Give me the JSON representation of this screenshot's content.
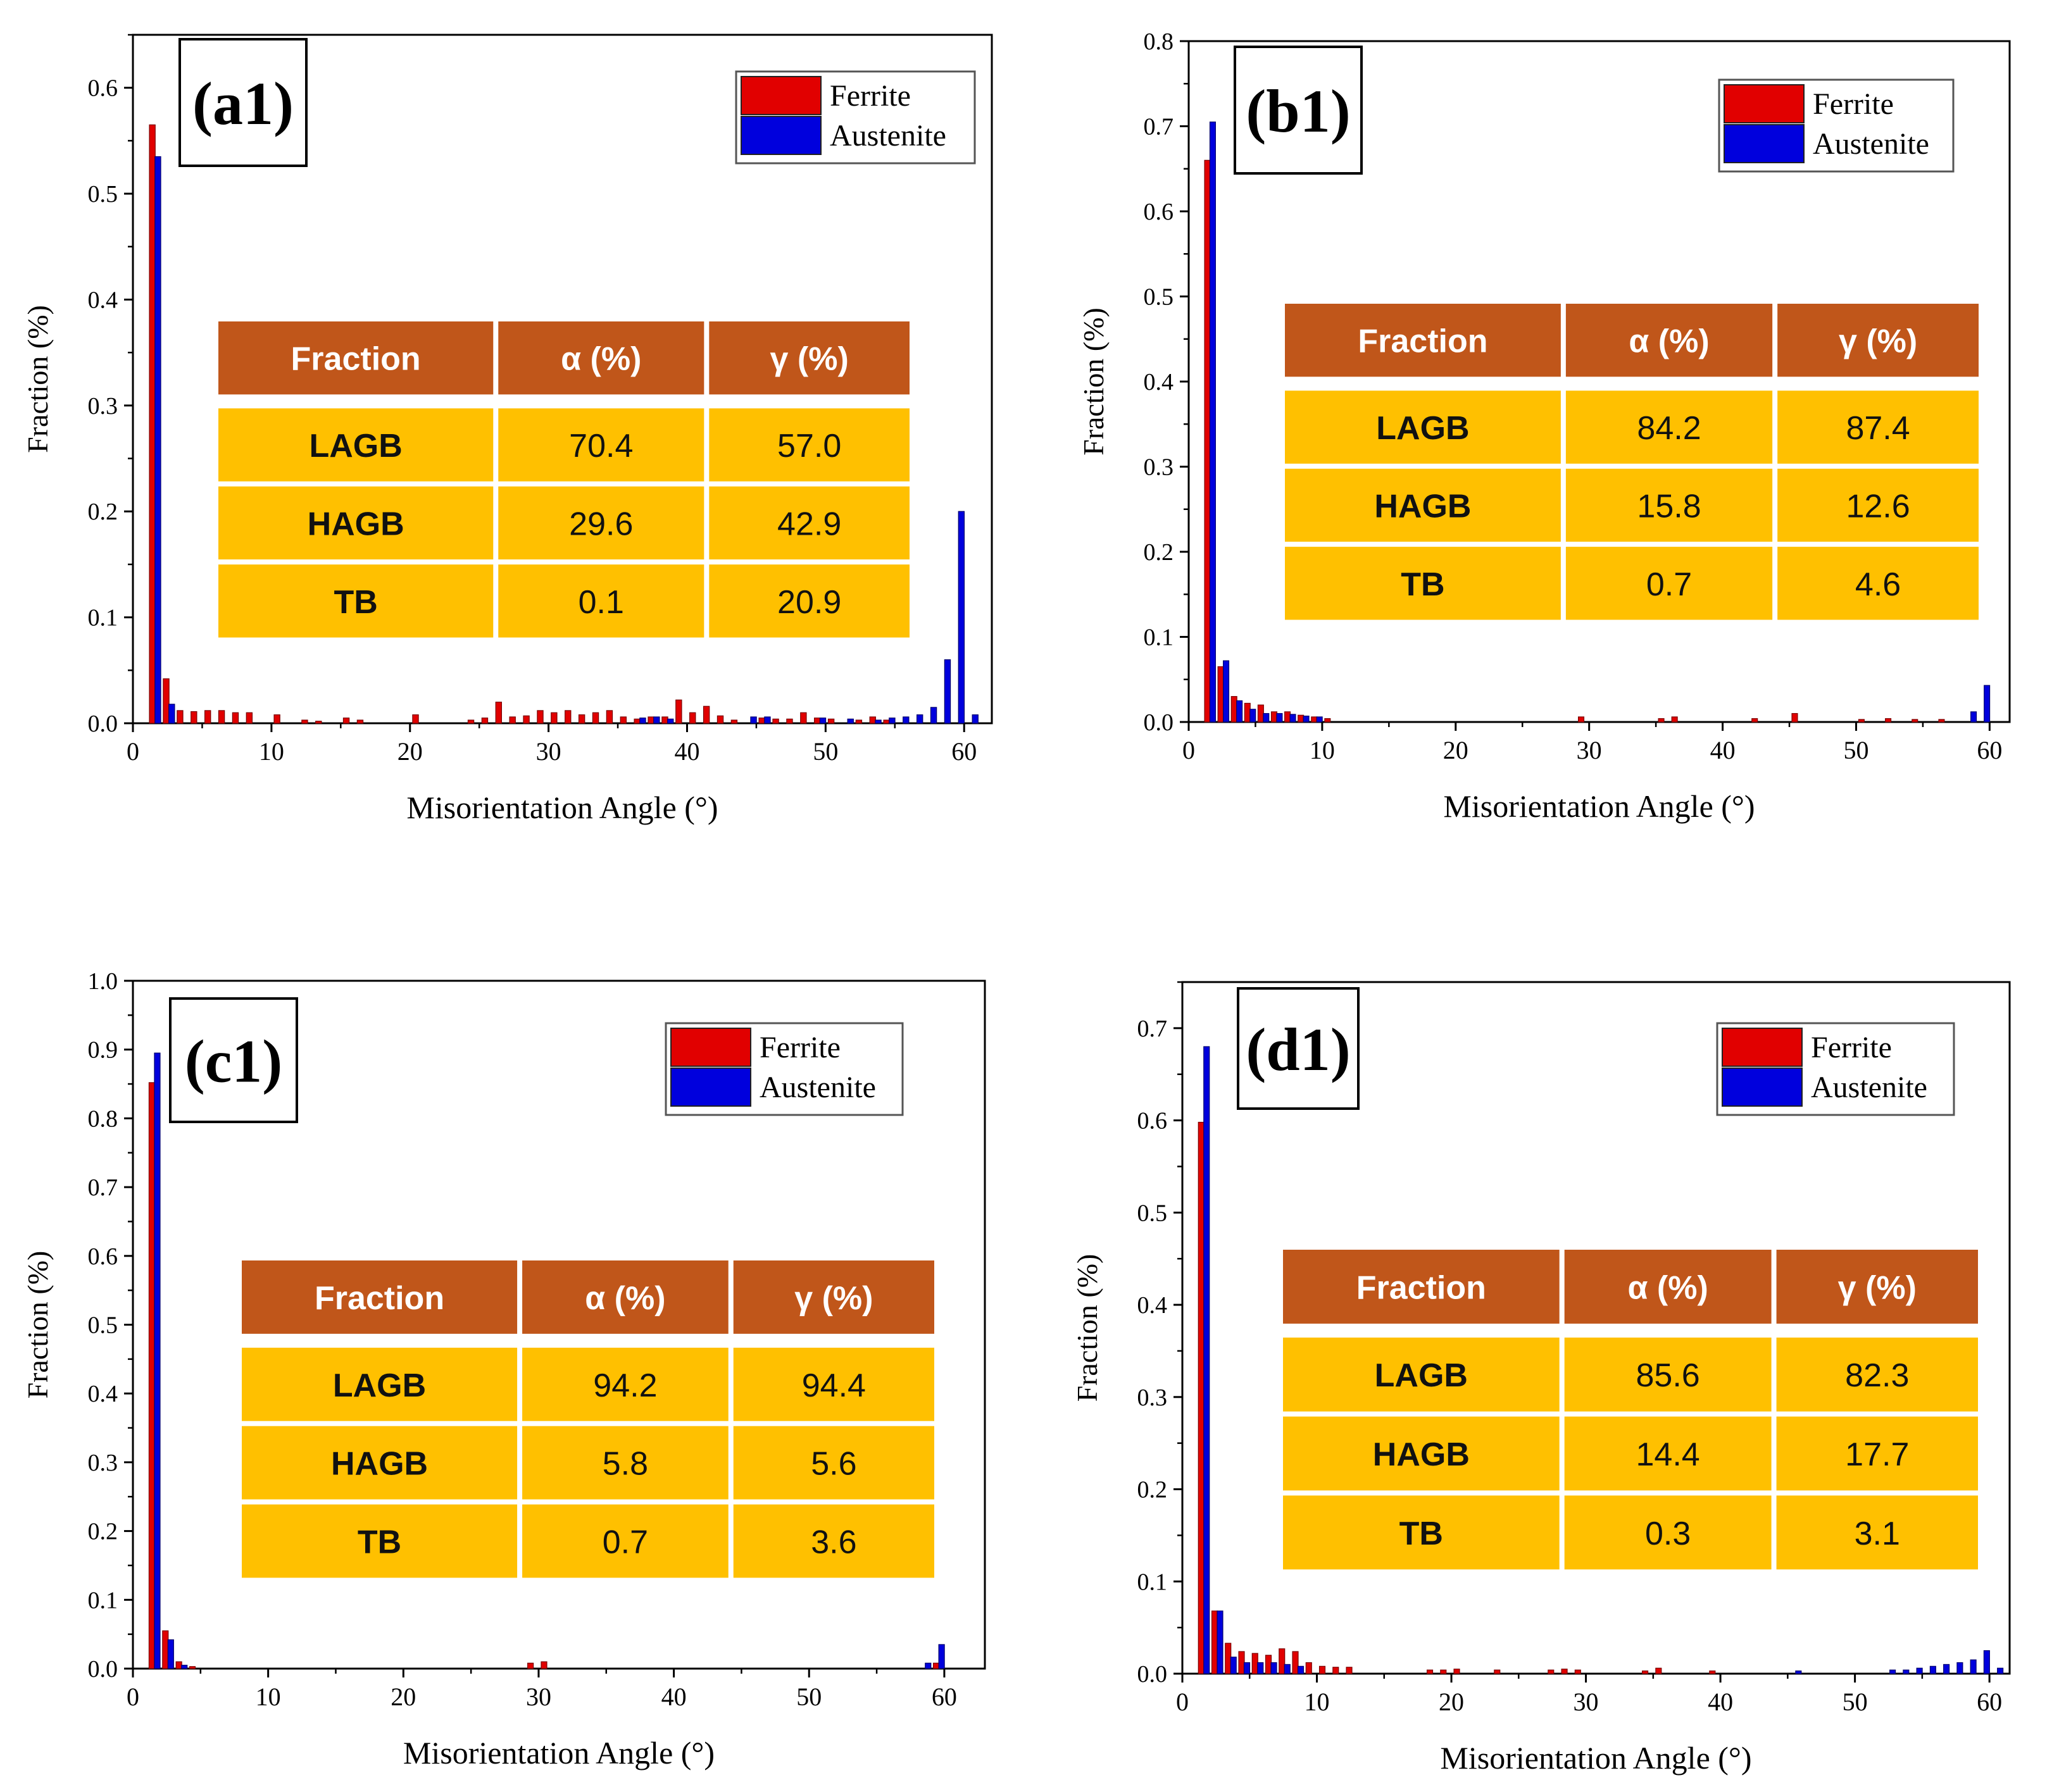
{
  "figure": {
    "legend": {
      "ferrite": "Ferrite",
      "austenite": "Austenite"
    },
    "colors": {
      "ferrite": "#e10000",
      "austenite": "#0000dd",
      "table_header": "#c0561a",
      "table_cell": "#ffc000",
      "table_header_text": "#ffffff",
      "table_cell_text": "#111111"
    }
  },
  "chart_data": [
    {
      "type": "bar",
      "panel_label": "(a1)",
      "xlabel": "Misorientation Angle (°)",
      "ylabel": "Fraction (%)",
      "xlim": [
        0,
        62
      ],
      "ylim": [
        0,
        0.65
      ],
      "xticks": [
        0,
        10,
        20,
        30,
        40,
        50,
        60
      ],
      "xtick_labels": [
        "0",
        "10",
        "20",
        "30",
        "40",
        "50",
        "60"
      ],
      "yticks": [
        0,
        0.1,
        0.2,
        0.3,
        0.4,
        0.5,
        0.6
      ],
      "ytick_labels": [
        "0.0",
        "0.1",
        "0.2",
        "0.3",
        "0.4",
        "0.5",
        "0.6"
      ],
      "legend_position": "top-right",
      "series": [
        {
          "name": "Ferrite",
          "points": [
            [
              1.4,
              0.565
            ],
            [
              2.4,
              0.042
            ],
            [
              3.4,
              0.012
            ],
            [
              4.4,
              0.011
            ],
            [
              5.4,
              0.012
            ],
            [
              6.4,
              0.012
            ],
            [
              7.4,
              0.01
            ],
            [
              8.4,
              0.01
            ],
            [
              10.4,
              0.008
            ],
            [
              12.4,
              0.003
            ],
            [
              13.4,
              0.002
            ],
            [
              15.4,
              0.005
            ],
            [
              16.4,
              0.003
            ],
            [
              20.4,
              0.008
            ],
            [
              24.4,
              0.003
            ],
            [
              25.4,
              0.005
            ],
            [
              26.4,
              0.02
            ],
            [
              27.4,
              0.006
            ],
            [
              28.4,
              0.007
            ],
            [
              29.4,
              0.012
            ],
            [
              30.4,
              0.01
            ],
            [
              31.4,
              0.012
            ],
            [
              32.4,
              0.008
            ],
            [
              33.4,
              0.01
            ],
            [
              34.4,
              0.012
            ],
            [
              35.4,
              0.006
            ],
            [
              36.4,
              0.004
            ],
            [
              37.4,
              0.006
            ],
            [
              38.4,
              0.006
            ],
            [
              39.4,
              0.022
            ],
            [
              40.4,
              0.01
            ],
            [
              41.4,
              0.016
            ],
            [
              42.4,
              0.007
            ],
            [
              43.4,
              0.003
            ],
            [
              45.4,
              0.005
            ],
            [
              46.4,
              0.004
            ],
            [
              47.4,
              0.004
            ],
            [
              48.4,
              0.01
            ],
            [
              49.4,
              0.005
            ],
            [
              50.4,
              0.004
            ],
            [
              52.4,
              0.003
            ],
            [
              53.4,
              0.006
            ],
            [
              54.4,
              0.003
            ]
          ]
        },
        {
          "name": "Austenite",
          "points": [
            [
              1.8,
              0.535
            ],
            [
              2.8,
              0.018
            ],
            [
              36.8,
              0.005
            ],
            [
              37.8,
              0.006
            ],
            [
              38.8,
              0.004
            ],
            [
              44.8,
              0.006
            ],
            [
              45.8,
              0.006
            ],
            [
              49.8,
              0.005
            ],
            [
              51.8,
              0.004
            ],
            [
              53.8,
              0.003
            ],
            [
              54.8,
              0.005
            ],
            [
              55.8,
              0.006
            ],
            [
              56.8,
              0.008
            ],
            [
              57.8,
              0.015
            ],
            [
              58.8,
              0.06
            ],
            [
              59.8,
              0.2
            ],
            [
              60.8,
              0.008
            ]
          ]
        }
      ],
      "table": {
        "headers": [
          "Fraction",
          "α  (%)",
          "γ  (%)"
        ],
        "rows": [
          [
            "LAGB",
            "70.4",
            "57.0"
          ],
          [
            "HAGB",
            "29.6",
            "42.9"
          ],
          [
            "TB",
            "0.1",
            "20.9"
          ]
        ]
      }
    },
    {
      "type": "bar",
      "panel_label": "(b1)",
      "xlabel": "Misorientation Angle (°)",
      "ylabel": "Fraction (%)",
      "xlim": [
        0,
        61.5
      ],
      "ylim": [
        0,
        0.8
      ],
      "xticks": [
        0,
        10,
        20,
        30,
        40,
        50,
        60
      ],
      "xtick_labels": [
        "0",
        "10",
        "20",
        "30",
        "40",
        "50",
        "60"
      ],
      "yticks": [
        0,
        0.1,
        0.2,
        0.3,
        0.4,
        0.5,
        0.6,
        0.7,
        0.8
      ],
      "ytick_labels": [
        "0.0",
        "0.1",
        "0.2",
        "0.3",
        "0.4",
        "0.5",
        "0.6",
        "0.7",
        "0.8"
      ],
      "legend_position": "top-right",
      "series": [
        {
          "name": "Ferrite",
          "points": [
            [
              1.4,
              0.66
            ],
            [
              2.4,
              0.065
            ],
            [
              3.4,
              0.03
            ],
            [
              4.4,
              0.022
            ],
            [
              5.4,
              0.02
            ],
            [
              6.4,
              0.012
            ],
            [
              7.4,
              0.012
            ],
            [
              8.4,
              0.008
            ],
            [
              9.4,
              0.006
            ],
            [
              10.4,
              0.004
            ],
            [
              29.4,
              0.006
            ],
            [
              35.4,
              0.004
            ],
            [
              36.4,
              0.006
            ],
            [
              42.4,
              0.004
            ],
            [
              45.4,
              0.01
            ],
            [
              50.4,
              0.003
            ],
            [
              52.4,
              0.004
            ],
            [
              54.4,
              0.003
            ],
            [
              56.4,
              0.003
            ]
          ]
        },
        {
          "name": "Austenite",
          "points": [
            [
              1.8,
              0.705
            ],
            [
              2.8,
              0.072
            ],
            [
              3.8,
              0.025
            ],
            [
              4.8,
              0.015
            ],
            [
              5.8,
              0.01
            ],
            [
              6.8,
              0.01
            ],
            [
              7.8,
              0.009
            ],
            [
              8.8,
              0.007
            ],
            [
              9.8,
              0.006
            ],
            [
              58.8,
              0.012
            ],
            [
              59.8,
              0.043
            ]
          ]
        }
      ],
      "table": {
        "headers": [
          "Fraction",
          "α  (%)",
          "γ  (%)"
        ],
        "rows": [
          [
            "LAGB",
            "84.2",
            "87.4"
          ],
          [
            "HAGB",
            "15.8",
            "12.6"
          ],
          [
            "TB",
            "0.7",
            "4.6"
          ]
        ]
      }
    },
    {
      "type": "bar",
      "panel_label": "(c1)",
      "xlabel": "Misorientation Angle (°)",
      "ylabel": "Fraction (%)",
      "xlim": [
        0,
        63
      ],
      "ylim": [
        0,
        1.0
      ],
      "xticks": [
        0,
        10,
        20,
        30,
        40,
        50,
        60
      ],
      "xtick_labels": [
        "0",
        "10",
        "20",
        "30",
        "40",
        "50",
        "60"
      ],
      "yticks": [
        0,
        0.1,
        0.2,
        0.3,
        0.4,
        0.5,
        0.6,
        0.7,
        0.8,
        0.9,
        1.0
      ],
      "ytick_labels": [
        "0.0",
        "0.1",
        "0.2",
        "0.3",
        "0.4",
        "0.5",
        "0.6",
        "0.7",
        "0.8",
        "0.9",
        "1.0"
      ],
      "legend_position": "top-right",
      "series": [
        {
          "name": "Ferrite",
          "points": [
            [
              1.4,
              0.852
            ],
            [
              2.4,
              0.055
            ],
            [
              3.4,
              0.01
            ],
            [
              4.4,
              0.003
            ],
            [
              29.4,
              0.008
            ],
            [
              30.4,
              0.01
            ],
            [
              59.4,
              0.008
            ]
          ]
        },
        {
          "name": "Austenite",
          "points": [
            [
              1.8,
              0.895
            ],
            [
              2.8,
              0.042
            ],
            [
              3.8,
              0.005
            ],
            [
              58.8,
              0.008
            ],
            [
              59.8,
              0.035
            ]
          ]
        }
      ],
      "table": {
        "headers": [
          "Fraction",
          "α  (%)",
          "γ  (%)"
        ],
        "rows": [
          [
            "LAGB",
            "94.2",
            "94.4"
          ],
          [
            "HAGB",
            "5.8",
            "5.6"
          ],
          [
            "TB",
            "0.7",
            "3.6"
          ]
        ]
      }
    },
    {
      "type": "bar",
      "panel_label": "(d1)",
      "xlabel": "Misorientation Angle (°)",
      "ylabel": "Fraction (%)",
      "xlim": [
        0,
        61.5
      ],
      "ylim": [
        0,
        0.75
      ],
      "xticks": [
        0,
        10,
        20,
        30,
        40,
        50,
        60
      ],
      "xtick_labels": [
        "0",
        "10",
        "20",
        "30",
        "40",
        "50",
        "60"
      ],
      "yticks": [
        0,
        0.1,
        0.2,
        0.3,
        0.4,
        0.5,
        0.6,
        0.7
      ],
      "ytick_labels": [
        "0.0",
        "0.1",
        "0.2",
        "0.3",
        "0.4",
        "0.5",
        "0.6",
        "0.7"
      ],
      "legend_position": "top-right",
      "series": [
        {
          "name": "Ferrite",
          "points": [
            [
              1.4,
              0.598
            ],
            [
              2.4,
              0.068
            ],
            [
              3.4,
              0.033
            ],
            [
              4.4,
              0.024
            ],
            [
              5.4,
              0.022
            ],
            [
              6.4,
              0.02
            ],
            [
              7.4,
              0.027
            ],
            [
              8.4,
              0.024
            ],
            [
              9.4,
              0.012
            ],
            [
              10.4,
              0.008
            ],
            [
              11.4,
              0.007
            ],
            [
              12.4,
              0.007
            ],
            [
              18.4,
              0.004
            ],
            [
              19.4,
              0.004
            ],
            [
              20.4,
              0.005
            ],
            [
              23.4,
              0.004
            ],
            [
              27.4,
              0.004
            ],
            [
              28.4,
              0.005
            ],
            [
              29.4,
              0.004
            ],
            [
              34.4,
              0.003
            ],
            [
              35.4,
              0.006
            ],
            [
              39.4,
              0.003
            ]
          ]
        },
        {
          "name": "Austenite",
          "points": [
            [
              1.8,
              0.68
            ],
            [
              2.8,
              0.068
            ],
            [
              3.8,
              0.018
            ],
            [
              4.8,
              0.012
            ],
            [
              5.8,
              0.012
            ],
            [
              6.8,
              0.012
            ],
            [
              7.8,
              0.01
            ],
            [
              8.8,
              0.008
            ],
            [
              45.8,
              0.003
            ],
            [
              52.8,
              0.004
            ],
            [
              53.8,
              0.004
            ],
            [
              54.8,
              0.006
            ],
            [
              55.8,
              0.008
            ],
            [
              56.8,
              0.01
            ],
            [
              57.8,
              0.012
            ],
            [
              58.8,
              0.015
            ],
            [
              59.8,
              0.025
            ],
            [
              60.8,
              0.006
            ]
          ]
        }
      ],
      "table": {
        "headers": [
          "Fraction",
          "α  (%)",
          "γ  (%)"
        ],
        "rows": [
          [
            "LAGB",
            "85.6",
            "82.3"
          ],
          [
            "HAGB",
            "14.4",
            "17.7"
          ],
          [
            "TB",
            "0.3",
            "3.1"
          ]
        ]
      }
    }
  ]
}
